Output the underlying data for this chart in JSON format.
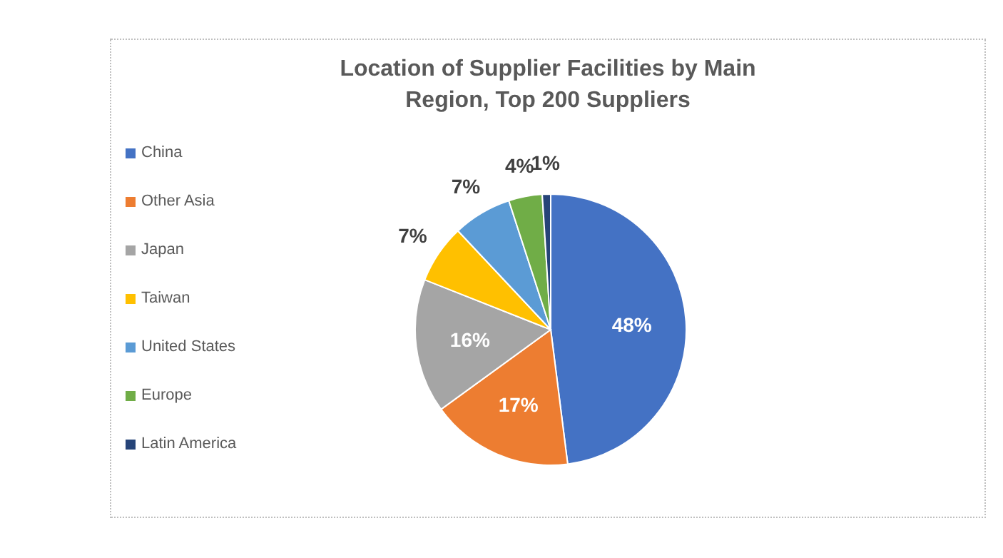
{
  "chart_data": {
    "type": "pie",
    "title": "Location of Supplier Facilities by Main Region, Top 200 Suppliers",
    "categories": [
      "China",
      "Other Asia",
      "Japan",
      "Taiwan",
      "United States",
      "Europe",
      "Latin America"
    ],
    "values": [
      48,
      17,
      16,
      7,
      7,
      4,
      1
    ],
    "colors": [
      "#4472c4",
      "#ed7d31",
      "#a5a5a5",
      "#ffc000",
      "#5b9bd5",
      "#70ad47",
      "#264478"
    ],
    "value_labels": [
      "48%",
      "17%",
      "16%",
      "7%",
      "7%",
      "4%",
      "1%"
    ],
    "legend": "left"
  }
}
